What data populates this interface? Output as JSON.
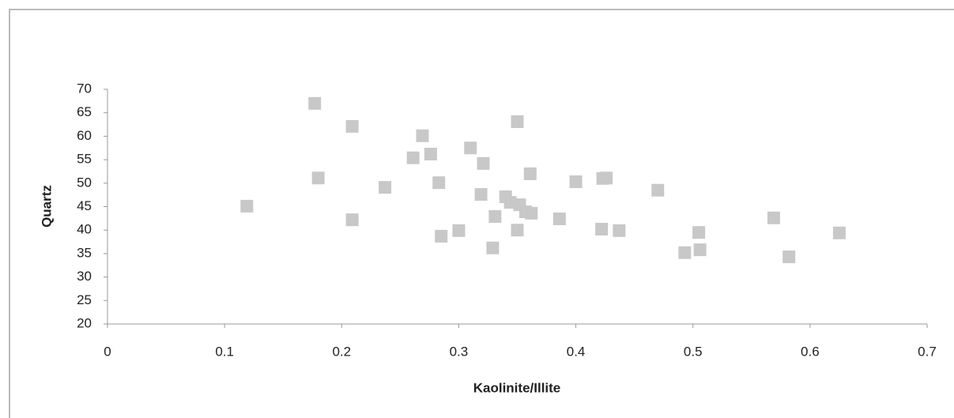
{
  "chart_data": {
    "type": "scatter",
    "x_label": "Kaolinite/Illite",
    "y_label": "Quartz",
    "xlim": [
      0,
      0.7
    ],
    "xticks": [
      0,
      0.1,
      0.2,
      0.3,
      0.4,
      0.5,
      0.6,
      0.7
    ],
    "ylim": [
      20,
      70
    ],
    "yticks": [
      20,
      25,
      30,
      35,
      40,
      45,
      50,
      55,
      60,
      65,
      70
    ],
    "color": "#c8c8c8",
    "x": [
      0.177,
      0.209,
      0.269,
      0.35,
      0.31,
      0.276,
      0.261,
      0.321,
      0.361,
      0.18,
      0.426,
      0.423,
      0.4,
      0.237,
      0.283,
      0.47,
      0.319,
      0.34,
      0.344,
      0.352,
      0.357,
      0.362,
      0.119,
      0.331,
      0.386,
      0.209,
      0.569,
      0.422,
      0.437,
      0.35,
      0.3,
      0.285,
      0.505,
      0.625,
      0.493,
      0.506,
      0.582,
      0.329
    ],
    "values": [
      67.0,
      62.1,
      60.1,
      63.1,
      57.5,
      56.2,
      55.4,
      54.2,
      52.0,
      51.1,
      51.1,
      51.0,
      50.3,
      49.1,
      50.1,
      48.5,
      47.6,
      47.1,
      45.9,
      45.4,
      43.9,
      43.6,
      45.1,
      42.9,
      42.4,
      42.2,
      42.6,
      40.2,
      39.9,
      40.0,
      39.9,
      38.7,
      39.5,
      39.4,
      35.2,
      35.8,
      34.3,
      36.2
    ]
  }
}
